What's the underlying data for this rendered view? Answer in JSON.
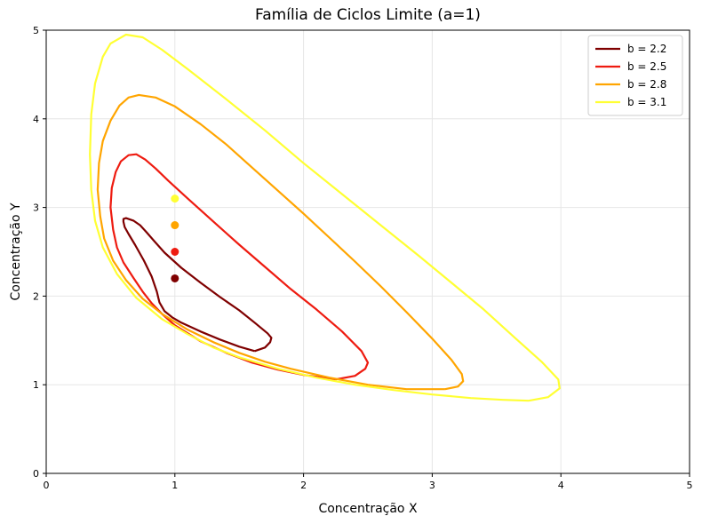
{
  "chart_data": {
    "type": "line",
    "title": "Família de Ciclos Limite (a=1)",
    "xlabel": "Concentração X",
    "ylabel": "Concentração Y",
    "xlim": [
      0,
      5
    ],
    "ylim": [
      0,
      5
    ],
    "xticks": [
      0,
      1,
      2,
      3,
      4,
      5
    ],
    "yticks": [
      0,
      1,
      2,
      3,
      4,
      5
    ],
    "grid": true,
    "legend_position": "top-right",
    "series": [
      {
        "name": "b = 2.2",
        "color": "#7f0000",
        "equilibrium": [
          1,
          2.2
        ],
        "x": [
          1.62,
          1.7,
          1.74,
          1.75,
          1.72,
          1.62,
          1.5,
          1.35,
          1.2,
          1.05,
          0.92,
          0.84,
          0.78,
          0.73,
          0.68,
          0.64,
          0.62,
          0.6,
          0.6,
          0.61,
          0.64,
          0.69,
          0.76,
          0.82,
          0.86,
          0.88,
          0.92,
          0.98,
          1.05,
          1.2,
          1.35,
          1.5,
          1.62
        ],
        "y": [
          1.38,
          1.42,
          1.48,
          1.53,
          1.58,
          1.7,
          1.84,
          1.99,
          2.15,
          2.32,
          2.49,
          2.62,
          2.72,
          2.8,
          2.85,
          2.87,
          2.88,
          2.87,
          2.84,
          2.78,
          2.7,
          2.58,
          2.4,
          2.22,
          2.05,
          1.93,
          1.83,
          1.76,
          1.7,
          1.6,
          1.51,
          1.43,
          1.38
        ]
      },
      {
        "name": "b = 2.5",
        "color": "#ee1b10",
        "equilibrium": [
          1,
          2.5
        ],
        "x": [
          2.25,
          2.4,
          2.48,
          2.5,
          2.45,
          2.3,
          2.1,
          1.9,
          1.7,
          1.5,
          1.3,
          1.1,
          0.95,
          0.85,
          0.77,
          0.7,
          0.64,
          0.58,
          0.54,
          0.51,
          0.5,
          0.52,
          0.55,
          0.6,
          0.68,
          0.75,
          0.82,
          0.9,
          1.0,
          1.2,
          1.4,
          1.6,
          1.8,
          2.0,
          2.25
        ],
        "y": [
          1.06,
          1.1,
          1.18,
          1.25,
          1.38,
          1.6,
          1.85,
          2.08,
          2.33,
          2.58,
          2.84,
          3.1,
          3.3,
          3.44,
          3.54,
          3.6,
          3.59,
          3.52,
          3.4,
          3.22,
          3.0,
          2.75,
          2.55,
          2.38,
          2.2,
          2.05,
          1.92,
          1.8,
          1.67,
          1.49,
          1.36,
          1.25,
          1.17,
          1.11,
          1.06
        ]
      },
      {
        "name": "b = 2.8",
        "color": "#ffa500",
        "equilibrium": [
          1,
          2.8
        ],
        "x": [
          3.1,
          3.2,
          3.24,
          3.23,
          3.15,
          3.0,
          2.8,
          2.6,
          2.4,
          2.2,
          2.0,
          1.8,
          1.6,
          1.4,
          1.2,
          1.0,
          0.85,
          0.72,
          0.64,
          0.57,
          0.5,
          0.44,
          0.41,
          0.4,
          0.42,
          0.45,
          0.52,
          0.62,
          0.75,
          0.9,
          1.1,
          1.3,
          1.5,
          1.7,
          1.9,
          2.2,
          2.5,
          2.8,
          3.1
        ],
        "y": [
          0.95,
          0.98,
          1.04,
          1.12,
          1.28,
          1.52,
          1.82,
          2.11,
          2.39,
          2.66,
          2.93,
          3.19,
          3.45,
          3.71,
          3.94,
          4.14,
          4.24,
          4.27,
          4.24,
          4.15,
          3.98,
          3.75,
          3.5,
          3.2,
          2.9,
          2.65,
          2.4,
          2.18,
          1.97,
          1.8,
          1.62,
          1.48,
          1.36,
          1.26,
          1.18,
          1.08,
          1.0,
          0.95,
          0.95
        ]
      },
      {
        "name": "b = 3.1",
        "color": "#ffff33",
        "equilibrium": [
          1,
          3.1
        ],
        "x": [
          3.75,
          3.9,
          3.99,
          3.98,
          3.85,
          3.65,
          3.4,
          3.15,
          2.9,
          2.6,
          2.3,
          2.0,
          1.7,
          1.4,
          1.1,
          0.9,
          0.75,
          0.62,
          0.5,
          0.44,
          0.38,
          0.35,
          0.34,
          0.35,
          0.38,
          0.44,
          0.55,
          0.7,
          0.9,
          1.1,
          1.3,
          1.5,
          1.8,
          2.1,
          2.4,
          2.7,
          3.0,
          3.3,
          3.55,
          3.75
        ],
        "y": [
          0.82,
          0.86,
          0.96,
          1.06,
          1.26,
          1.52,
          1.85,
          2.15,
          2.45,
          2.8,
          3.15,
          3.5,
          3.87,
          4.22,
          4.56,
          4.78,
          4.92,
          4.95,
          4.85,
          4.7,
          4.4,
          4.05,
          3.6,
          3.2,
          2.85,
          2.55,
          2.25,
          1.98,
          1.74,
          1.57,
          1.42,
          1.31,
          1.18,
          1.08,
          1.0,
          0.94,
          0.89,
          0.85,
          0.83,
          0.82
        ]
      }
    ]
  }
}
